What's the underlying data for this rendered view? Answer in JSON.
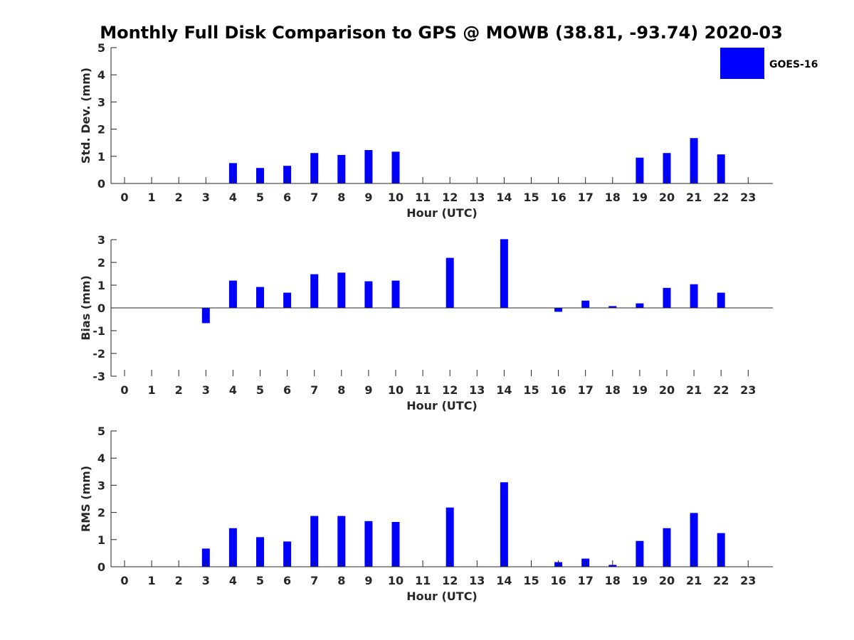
{
  "title": "Monthly Full Disk Comparison to GPS @ MOWB (38.81, -93.74) 2020-03",
  "legend": {
    "label": "GOES-16",
    "color": "#0000ff"
  },
  "chart_data": [
    {
      "type": "bar",
      "name": "std-dev",
      "xlabel": "Hour (UTC)",
      "ylabel": "Std. Dev. (mm)",
      "ylim": [
        0,
        5
      ],
      "yticks": [
        0,
        1,
        2,
        3,
        4,
        5
      ],
      "categories": [
        "0",
        "1",
        "2",
        "3",
        "4",
        "5",
        "6",
        "7",
        "8",
        "9",
        "10",
        "11",
        "12",
        "13",
        "14",
        "15",
        "16",
        "17",
        "18",
        "19",
        "20",
        "21",
        "22",
        "23"
      ],
      "series": [
        {
          "name": "GOES-16",
          "color": "#0000ff",
          "values": [
            null,
            null,
            null,
            null,
            0.75,
            0.57,
            0.65,
            1.12,
            1.05,
            1.23,
            1.17,
            null,
            null,
            null,
            null,
            null,
            null,
            null,
            null,
            0.95,
            1.12,
            1.67,
            1.07,
            null
          ]
        }
      ]
    },
    {
      "type": "bar",
      "name": "bias",
      "xlabel": "Hour (UTC)",
      "ylabel": "Bias (mm)",
      "ylim": [
        -3,
        3
      ],
      "yticks": [
        -3,
        -2,
        -1,
        0,
        1,
        2,
        3
      ],
      "categories": [
        "0",
        "1",
        "2",
        "3",
        "4",
        "5",
        "6",
        "7",
        "8",
        "9",
        "10",
        "11",
        "12",
        "13",
        "14",
        "15",
        "16",
        "17",
        "18",
        "19",
        "20",
        "21",
        "22",
        "23"
      ],
      "series": [
        {
          "name": "GOES-16",
          "color": "#0000ff",
          "values": [
            null,
            null,
            null,
            -0.67,
            1.2,
            0.92,
            0.67,
            1.48,
            1.55,
            1.17,
            1.2,
            null,
            2.2,
            null,
            3.02,
            null,
            -0.17,
            0.32,
            0.08,
            0.2,
            0.88,
            1.04,
            0.67,
            null
          ]
        }
      ]
    },
    {
      "type": "bar",
      "name": "rms",
      "xlabel": "Hour (UTC)",
      "ylabel": "RMS (mm)",
      "ylim": [
        0,
        5
      ],
      "yticks": [
        0,
        1,
        2,
        3,
        4,
        5
      ],
      "categories": [
        "0",
        "1",
        "2",
        "3",
        "4",
        "5",
        "6",
        "7",
        "8",
        "9",
        "10",
        "11",
        "12",
        "13",
        "14",
        "15",
        "16",
        "17",
        "18",
        "19",
        "20",
        "21",
        "22",
        "23"
      ],
      "series": [
        {
          "name": "GOES-16",
          "color": "#0000ff",
          "values": [
            null,
            null,
            null,
            0.67,
            1.42,
            1.09,
            0.93,
            1.87,
            1.87,
            1.68,
            1.65,
            null,
            2.18,
            null,
            3.11,
            null,
            0.17,
            0.3,
            0.07,
            0.95,
            1.42,
            1.98,
            1.24,
            null
          ]
        }
      ]
    }
  ]
}
